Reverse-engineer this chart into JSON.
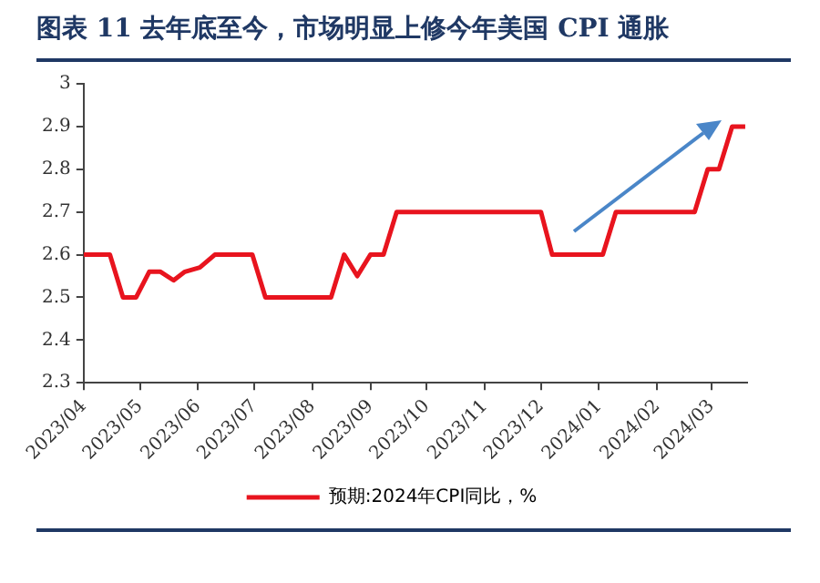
{
  "chart_data": {
    "type": "line",
    "title": "图表 11 去年底至今，市场明显上修今年美国 CPI 通胀",
    "x": [
      "2023-04-01",
      "2023-04-15",
      "2023-04-22",
      "2023-04-29",
      "2023-05-06",
      "2023-05-12",
      "2023-05-19",
      "2023-05-25",
      "2023-06-02",
      "2023-06-10",
      "2023-06-30",
      "2023-07-07",
      "2023-08-11",
      "2023-08-18",
      "2023-08-25",
      "2023-09-01",
      "2023-09-08",
      "2023-09-15",
      "2023-12-01",
      "2023-12-07",
      "2024-01-03",
      "2024-01-10",
      "2024-02-21",
      "2024-02-28",
      "2024-03-05",
      "2024-03-12",
      "2024-03-19"
    ],
    "series": [
      {
        "name": "预期:2024年CPI同比，%",
        "color": "#e8141e",
        "values": [
          2.6,
          2.6,
          2.5,
          2.5,
          2.56,
          2.56,
          2.54,
          2.56,
          2.57,
          2.6,
          2.6,
          2.5,
          2.5,
          2.6,
          2.55,
          2.6,
          2.6,
          2.7,
          2.7,
          2.6,
          2.6,
          2.7,
          2.7,
          2.8,
          2.8,
          2.9,
          2.9
        ]
      }
    ],
    "xlim": [
      "2023-04-01",
      "2024-03-20"
    ],
    "xticks": [
      {
        "value": "2023-04-01",
        "label": "2023/04"
      },
      {
        "value": "2023-05-01",
        "label": "2023/05"
      },
      {
        "value": "2023-06-01",
        "label": "2023/06"
      },
      {
        "value": "2023-07-01",
        "label": "2023/07"
      },
      {
        "value": "2023-08-01",
        "label": "2023/08"
      },
      {
        "value": "2023-09-01",
        "label": "2023/09"
      },
      {
        "value": "2023-10-01",
        "label": "2023/10"
      },
      {
        "value": "2023-11-01",
        "label": "2023/11"
      },
      {
        "value": "2023-12-01",
        "label": "2023/12"
      },
      {
        "value": "2024-01-01",
        "label": "2024/01"
      },
      {
        "value": "2024-02-01",
        "label": "2024/02"
      },
      {
        "value": "2024-03-01",
        "label": "2024/03"
      }
    ],
    "ylim": [
      2.3,
      3
    ],
    "yticks": [
      2.3,
      2.4,
      2.5,
      2.6,
      2.7,
      2.8,
      2.9,
      3
    ],
    "grid": false,
    "legend": "bottom",
    "marker": "none",
    "line_style": "solid"
  }
}
